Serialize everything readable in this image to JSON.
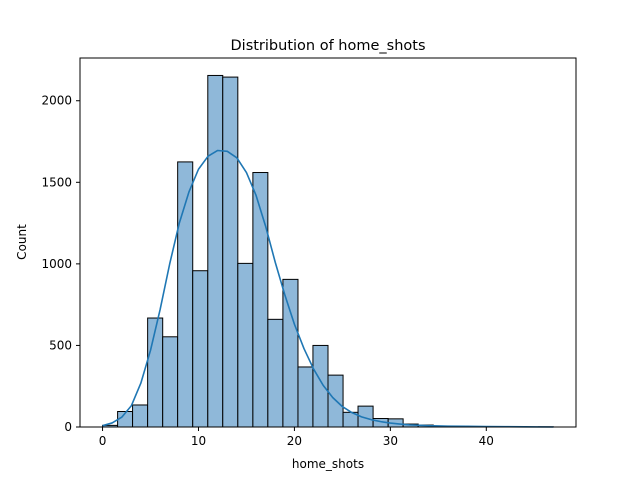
{
  "chart_data": {
    "type": "bar",
    "title": "Distribution of home_shots",
    "xlabel": "home_shots",
    "ylabel": "Count",
    "xlim": [
      -2.35,
      49.35
    ],
    "ylim": [
      0,
      2262
    ],
    "x_ticks": [
      0,
      10,
      20,
      30,
      40
    ],
    "y_ticks": [
      0,
      500,
      1000,
      1500,
      2000
    ],
    "grid": false,
    "legend": "none",
    "bins": [
      {
        "x0": 0.0,
        "x1": 1.57,
        "count": 10
      },
      {
        "x0": 1.57,
        "x1": 3.13,
        "count": 95
      },
      {
        "x0": 3.13,
        "x1": 4.7,
        "count": 135
      },
      {
        "x0": 4.7,
        "x1": 6.27,
        "count": 668
      },
      {
        "x0": 6.27,
        "x1": 7.83,
        "count": 553
      },
      {
        "x0": 7.83,
        "x1": 9.4,
        "count": 1625
      },
      {
        "x0": 9.4,
        "x1": 10.97,
        "count": 958
      },
      {
        "x0": 10.97,
        "x1": 12.53,
        "count": 2155
      },
      {
        "x0": 12.53,
        "x1": 14.1,
        "count": 2145
      },
      {
        "x0": 14.1,
        "x1": 15.67,
        "count": 1003
      },
      {
        "x0": 15.67,
        "x1": 17.23,
        "count": 1560
      },
      {
        "x0": 17.23,
        "x1": 18.8,
        "count": 660
      },
      {
        "x0": 18.8,
        "x1": 20.37,
        "count": 905
      },
      {
        "x0": 20.37,
        "x1": 21.93,
        "count": 368
      },
      {
        "x0": 21.93,
        "x1": 23.5,
        "count": 500
      },
      {
        "x0": 23.5,
        "x1": 25.07,
        "count": 318
      },
      {
        "x0": 25.07,
        "x1": 26.63,
        "count": 90
      },
      {
        "x0": 26.63,
        "x1": 28.2,
        "count": 128
      },
      {
        "x0": 28.2,
        "x1": 29.77,
        "count": 52
      },
      {
        "x0": 29.77,
        "x1": 31.33,
        "count": 50
      },
      {
        "x0": 31.33,
        "x1": 32.9,
        "count": 18
      },
      {
        "x0": 32.9,
        "x1": 34.47,
        "count": 12
      },
      {
        "x0": 34.47,
        "x1": 36.03,
        "count": 4
      },
      {
        "x0": 36.03,
        "x1": 37.6,
        "count": 3
      },
      {
        "x0": 37.6,
        "x1": 39.17,
        "count": 2
      },
      {
        "x0": 39.17,
        "x1": 40.73,
        "count": 2
      },
      {
        "x0": 40.73,
        "x1": 42.3,
        "count": 1
      },
      {
        "x0": 42.3,
        "x1": 43.87,
        "count": 1
      },
      {
        "x0": 43.87,
        "x1": 45.43,
        "count": 0
      },
      {
        "x0": 45.43,
        "x1": 47.0,
        "count": 1
      }
    ],
    "kde": {
      "x": [
        0,
        1,
        2,
        3,
        4,
        5,
        6,
        7,
        8,
        9,
        10,
        11,
        12,
        13,
        14,
        15,
        16,
        17,
        18,
        19,
        20,
        21,
        22,
        23,
        24,
        25,
        26,
        27,
        28,
        29,
        30,
        31,
        32,
        34,
        36,
        38,
        40,
        42,
        44,
        47
      ],
      "y": [
        8,
        25,
        60,
        130,
        270,
        470,
        720,
        1000,
        1250,
        1440,
        1580,
        1660,
        1695,
        1690,
        1650,
        1560,
        1420,
        1230,
        1010,
        810,
        630,
        480,
        355,
        255,
        180,
        125,
        88,
        62,
        45,
        33,
        24,
        18,
        13,
        8,
        5,
        4,
        3,
        2,
        1,
        0
      ]
    },
    "colors": {
      "bar_fill": "#8fb8d9",
      "bar_edge": "#000000",
      "kde_line": "#1f77b4",
      "axes": "#000000"
    }
  }
}
